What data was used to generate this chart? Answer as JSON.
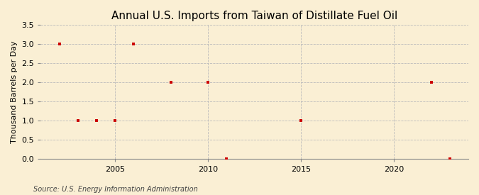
{
  "title": "Annual U.S. Imports from Taiwan of Distillate Fuel Oil",
  "ylabel": "Thousand Barrels per Day",
  "source": "Source: U.S. Energy Information Administration",
  "background_color": "#faefd4",
  "data_points": [
    [
      2002,
      3.0
    ],
    [
      2003,
      1.0
    ],
    [
      2004,
      1.0
    ],
    [
      2005,
      1.0
    ],
    [
      2006,
      3.0
    ],
    [
      2008,
      2.0
    ],
    [
      2010,
      2.0
    ],
    [
      2011,
      0.0
    ],
    [
      2015,
      1.0
    ],
    [
      2022,
      2.0
    ],
    [
      2023,
      0.0
    ]
  ],
  "marker_color": "#cc0000",
  "marker": "s",
  "marker_size": 3.5,
  "xlim": [
    2001,
    2024
  ],
  "ylim": [
    0.0,
    3.5
  ],
  "yticks": [
    0.0,
    0.5,
    1.0,
    1.5,
    2.0,
    2.5,
    3.0,
    3.5
  ],
  "xticks": [
    2005,
    2010,
    2015,
    2020
  ],
  "grid_color": "#bbbbbb",
  "grid_style": "--",
  "title_fontsize": 11,
  "ylabel_fontsize": 8,
  "tick_fontsize": 8,
  "source_fontsize": 7
}
